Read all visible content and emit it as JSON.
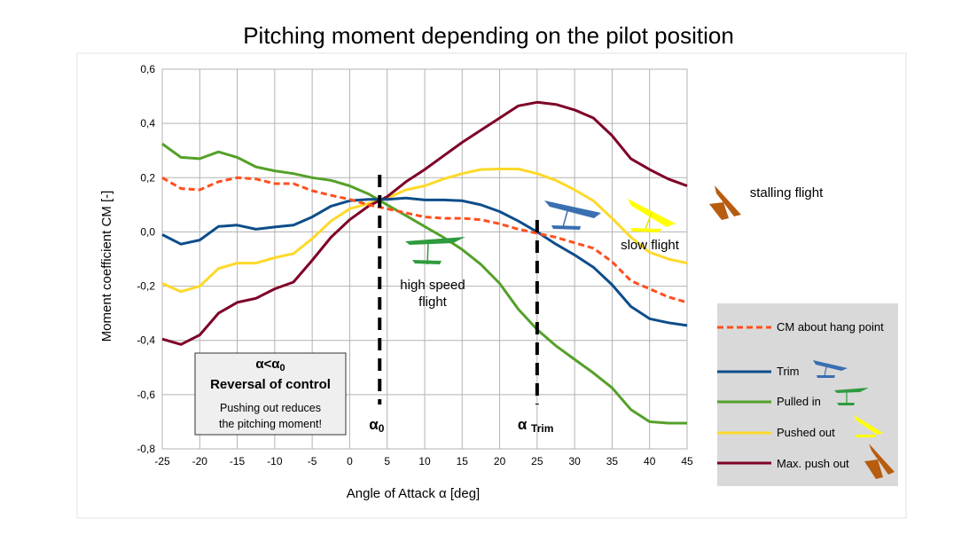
{
  "chart_data": {
    "type": "line",
    "title": "Pitching moment depending on the pilot position",
    "xlabel": "Angle of Attack α [deg]",
    "ylabel": "Moment coefficient CM [-]",
    "xlim": [
      -25,
      45
    ],
    "ylim": [
      -0.8,
      0.6
    ],
    "grid": true,
    "x_ticks": [
      -25,
      -20,
      -15,
      -10,
      -5,
      0,
      5,
      10,
      15,
      20,
      25,
      30,
      35,
      40,
      45
    ],
    "x_tick_labels": [
      "-25",
      "-20",
      "-15",
      "-10",
      "-5",
      "0",
      "5",
      "10",
      "15",
      "20",
      "25",
      "30",
      "35",
      "40",
      "45"
    ],
    "y_ticks": [
      0.6,
      0.4,
      0.2,
      0.0,
      -0.2,
      -0.4,
      -0.6,
      -0.8
    ],
    "y_tick_labels": [
      "0,6",
      "0,4",
      "0,2",
      "0,0",
      "-0,2",
      "-0,4",
      "-0,6",
      "-0,8"
    ],
    "series": [
      {
        "name": "CM about hang point",
        "color": "#ff4f1f",
        "dashed": true,
        "x": [
          -25,
          -22.5,
          -20,
          -17.5,
          -15,
          -12.5,
          -10,
          -7.5,
          -5,
          -2.5,
          0,
          2.5,
          5,
          7.5,
          10,
          12.5,
          15,
          17.5,
          20,
          22.5,
          25,
          27.5,
          30,
          32.5,
          35,
          37.5,
          40,
          42.5,
          45
        ],
        "y": [
          0.2,
          0.16,
          0.155,
          0.185,
          0.2,
          0.195,
          0.178,
          0.178,
          0.152,
          0.135,
          0.12,
          0.1,
          0.085,
          0.07,
          0.055,
          0.05,
          0.05,
          0.045,
          0.03,
          0.01,
          -0.005,
          -0.02,
          -0.04,
          -0.06,
          -0.11,
          -0.18,
          -0.21,
          -0.24,
          -0.26
        ]
      },
      {
        "name": "Trim",
        "color": "#0d4d8a",
        "dashed": false,
        "x": [
          -25,
          -22.5,
          -20,
          -17.5,
          -15,
          -12.5,
          -10,
          -7.5,
          -5,
          -2.5,
          0,
          2.5,
          5,
          7.5,
          10,
          12.5,
          15,
          17.5,
          20,
          22.5,
          25,
          27.5,
          30,
          32.5,
          35,
          37.5,
          40,
          42.5,
          45
        ],
        "y": [
          -0.01,
          -0.045,
          -0.03,
          0.02,
          0.025,
          0.01,
          0.018,
          0.025,
          0.055,
          0.095,
          0.115,
          0.12,
          0.12,
          0.125,
          0.118,
          0.118,
          0.115,
          0.1,
          0.075,
          0.04,
          0.0,
          -0.045,
          -0.085,
          -0.13,
          -0.195,
          -0.275,
          -0.32,
          -0.335,
          -0.345
        ]
      },
      {
        "name": "Pulled in",
        "color": "#55a02a",
        "dashed": false,
        "x": [
          -25,
          -22.5,
          -20,
          -17.5,
          -15,
          -12.5,
          -10,
          -7.5,
          -5,
          -2.5,
          0,
          2.5,
          5,
          7.5,
          10,
          12.5,
          15,
          17.5,
          20,
          22.5,
          25,
          27.5,
          30,
          32.5,
          35,
          37.5,
          40,
          42.5,
          45
        ],
        "y": [
          0.325,
          0.275,
          0.27,
          0.295,
          0.275,
          0.24,
          0.225,
          0.215,
          0.2,
          0.19,
          0.17,
          0.14,
          0.1,
          0.06,
          0.02,
          -0.02,
          -0.065,
          -0.12,
          -0.19,
          -0.285,
          -0.36,
          -0.42,
          -0.47,
          -0.52,
          -0.575,
          -0.655,
          -0.7,
          -0.705,
          -0.705
        ]
      },
      {
        "name": "Pushed out",
        "color": "#fdd92a",
        "dashed": false,
        "x": [
          -25,
          -22.5,
          -20,
          -17.5,
          -15,
          -12.5,
          -10,
          -7.5,
          -5,
          -2.5,
          0,
          2.5,
          5,
          7.5,
          10,
          12.5,
          15,
          17.5,
          20,
          22.5,
          25,
          27.5,
          30,
          32.5,
          35,
          37.5,
          40,
          42.5,
          45
        ],
        "y": [
          -0.19,
          -0.22,
          -0.2,
          -0.135,
          -0.115,
          -0.115,
          -0.095,
          -0.08,
          -0.025,
          0.04,
          0.085,
          0.105,
          0.125,
          0.155,
          0.17,
          0.195,
          0.215,
          0.23,
          0.232,
          0.232,
          0.215,
          0.19,
          0.155,
          0.115,
          0.05,
          -0.02,
          -0.075,
          -0.1,
          -0.115
        ]
      },
      {
        "name": "Max. push out",
        "color": "#7e0026",
        "dashed": false,
        "x": [
          -25,
          -22.5,
          -20,
          -17.5,
          -15,
          -12.5,
          -10,
          -7.5,
          -5,
          -2.5,
          0,
          2.5,
          5,
          7.5,
          10,
          12.5,
          15,
          17.5,
          20,
          22.5,
          25,
          27.5,
          30,
          32.5,
          35,
          37.5,
          40,
          42.5,
          45
        ],
        "y": [
          -0.395,
          -0.415,
          -0.38,
          -0.3,
          -0.26,
          -0.245,
          -0.21,
          -0.185,
          -0.105,
          -0.02,
          0.045,
          0.095,
          0.13,
          0.185,
          0.23,
          0.28,
          0.33,
          0.375,
          0.42,
          0.465,
          0.478,
          0.47,
          0.45,
          0.42,
          0.355,
          0.27,
          0.23,
          0.195,
          0.17
        ]
      }
    ],
    "alpha_lines": [
      {
        "x": 4,
        "label_main": "α",
        "label_sub": "0"
      },
      {
        "x": 25,
        "label_main": "α ",
        "label_sub": "Trim"
      }
    ],
    "annotations": {
      "high_speed": [
        "high speed",
        "flight"
      ],
      "slow": "slow flight",
      "stalling": "stalling flight"
    },
    "reversal_box": {
      "title_main": "α<α",
      "title_sub": "0",
      "heading": "Reversal of control",
      "body": [
        "Pushing out reduces",
        "the pitching moment!"
      ]
    },
    "legend_position": "bottom-right"
  }
}
